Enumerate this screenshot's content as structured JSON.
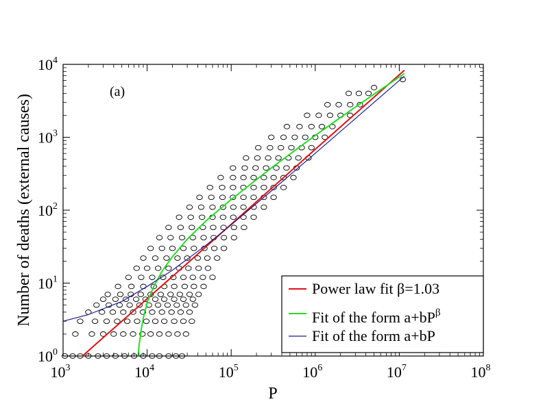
{
  "chart_data": {
    "type": "scatter",
    "xscale": "log",
    "yscale": "log",
    "xlim": [
      1000,
      100000000
    ],
    "ylim": [
      1,
      10000
    ],
    "xlabel": "P",
    "ylabel": "Number of deaths (external causes)",
    "panel_label": "(a)",
    "grid": false,
    "legend_position": "bottom-right",
    "xticks": [
      {
        "base": "10",
        "exp": "3",
        "value": 1000
      },
      {
        "base": "10",
        "exp": "4",
        "value": 10000
      },
      {
        "base": "10",
        "exp": "5",
        "value": 100000
      },
      {
        "base": "10",
        "exp": "6",
        "value": 1000000
      },
      {
        "base": "10",
        "exp": "7",
        "value": 10000000
      },
      {
        "base": "10",
        "exp": "8",
        "value": 100000000
      }
    ],
    "yticks": [
      {
        "base": "10",
        "exp": "0",
        "value": 1
      },
      {
        "base": "10",
        "exp": "1",
        "value": 10
      },
      {
        "base": "10",
        "exp": "2",
        "value": 100
      },
      {
        "base": "10",
        "exp": "3",
        "value": 1000
      },
      {
        "base": "10",
        "exp": "4",
        "value": 10000
      }
    ],
    "scatter_points": [
      [
        1050,
        1
      ],
      [
        1300,
        1
      ],
      [
        1600,
        1
      ],
      [
        2000,
        1
      ],
      [
        2600,
        1
      ],
      [
        3300,
        1
      ],
      [
        4200,
        1
      ],
      [
        5400,
        1
      ],
      [
        7000,
        1
      ],
      [
        9000,
        1
      ],
      [
        11500,
        1
      ],
      [
        14000,
        1
      ],
      [
        18000,
        1
      ],
      [
        22000,
        1
      ],
      [
        26000,
        1
      ],
      [
        1400,
        2
      ],
      [
        2200,
        2
      ],
      [
        3000,
        2
      ],
      [
        4000,
        2
      ],
      [
        5200,
        2
      ],
      [
        6800,
        2
      ],
      [
        8800,
        2
      ],
      [
        11000,
        2
      ],
      [
        14000,
        2
      ],
      [
        18000,
        2
      ],
      [
        23000,
        2
      ],
      [
        29000,
        2
      ],
      [
        1600,
        3
      ],
      [
        2400,
        3
      ],
      [
        3300,
        3
      ],
      [
        4400,
        3
      ],
      [
        5800,
        3
      ],
      [
        7600,
        3
      ],
      [
        9800,
        3
      ],
      [
        12500,
        3
      ],
      [
        16000,
        3
      ],
      [
        21000,
        3
      ],
      [
        27000,
        3
      ],
      [
        34000,
        3
      ],
      [
        2000,
        4
      ],
      [
        2900,
        4
      ],
      [
        3900,
        4
      ],
      [
        5200,
        4
      ],
      [
        6800,
        4
      ],
      [
        8900,
        4
      ],
      [
        11500,
        4
      ],
      [
        15000,
        4
      ],
      [
        19500,
        4
      ],
      [
        25000,
        4
      ],
      [
        32000,
        4
      ],
      [
        2500,
        5
      ],
      [
        3500,
        5
      ],
      [
        4700,
        5
      ],
      [
        6200,
        5
      ],
      [
        8100,
        5
      ],
      [
        10500,
        5
      ],
      [
        13500,
        5
      ],
      [
        17500,
        5
      ],
      [
        22500,
        5
      ],
      [
        29000,
        5
      ],
      [
        37000,
        5
      ],
      [
        3000,
        6
      ],
      [
        4200,
        6
      ],
      [
        5600,
        6
      ],
      [
        7400,
        6
      ],
      [
        9600,
        6
      ],
      [
        12500,
        6
      ],
      [
        16000,
        6
      ],
      [
        21000,
        6
      ],
      [
        27000,
        6
      ],
      [
        35000,
        6
      ],
      [
        3400,
        7
      ],
      [
        4800,
        7
      ],
      [
        6400,
        7
      ],
      [
        8400,
        7
      ],
      [
        11000,
        7
      ],
      [
        14500,
        7
      ],
      [
        19000,
        7
      ],
      [
        24500,
        7
      ],
      [
        32000,
        7
      ],
      [
        41000,
        7
      ],
      [
        4500,
        9
      ],
      [
        6500,
        9
      ],
      [
        9000,
        9
      ],
      [
        12000,
        9
      ],
      [
        16000,
        9
      ],
      [
        21000,
        9
      ],
      [
        28000,
        9
      ],
      [
        36000,
        9
      ],
      [
        47000,
        9
      ],
      [
        6000,
        12
      ],
      [
        8500,
        12
      ],
      [
        11500,
        12
      ],
      [
        15500,
        12
      ],
      [
        20500,
        12
      ],
      [
        27000,
        12
      ],
      [
        35000,
        12
      ],
      [
        46000,
        12
      ],
      [
        60000,
        12
      ],
      [
        7500,
        16
      ],
      [
        10000,
        16
      ],
      [
        13500,
        16
      ],
      [
        18000,
        16
      ],
      [
        24000,
        16
      ],
      [
        31000,
        16
      ],
      [
        41000,
        16
      ],
      [
        53000,
        16
      ],
      [
        9000,
        22
      ],
      [
        12500,
        22
      ],
      [
        17000,
        22
      ],
      [
        23000,
        22
      ],
      [
        30000,
        22
      ],
      [
        40000,
        22
      ],
      [
        52000,
        22
      ],
      [
        68000,
        22
      ],
      [
        11000,
        30
      ],
      [
        15000,
        30
      ],
      [
        20000,
        30
      ],
      [
        27000,
        30
      ],
      [
        36000,
        30
      ],
      [
        48000,
        30
      ],
      [
        63000,
        30
      ],
      [
        82000,
        30
      ],
      [
        14000,
        42
      ],
      [
        19000,
        42
      ],
      [
        26000,
        42
      ],
      [
        35000,
        42
      ],
      [
        47000,
        42
      ],
      [
        62000,
        42
      ],
      [
        82000,
        42
      ],
      [
        108000,
        42
      ],
      [
        18000,
        58
      ],
      [
        25000,
        58
      ],
      [
        34000,
        58
      ],
      [
        46000,
        58
      ],
      [
        61000,
        58
      ],
      [
        81000,
        58
      ],
      [
        108000,
        58
      ],
      [
        142000,
        58
      ],
      [
        24000,
        80
      ],
      [
        33000,
        80
      ],
      [
        45000,
        80
      ],
      [
        60000,
        80
      ],
      [
        80000,
        80
      ],
      [
        106000,
        80
      ],
      [
        140000,
        80
      ],
      [
        185000,
        80
      ],
      [
        32000,
        110
      ],
      [
        44000,
        110
      ],
      [
        60000,
        110
      ],
      [
        80000,
        110
      ],
      [
        106000,
        110
      ],
      [
        140000,
        110
      ],
      [
        185000,
        110
      ],
      [
        245000,
        110
      ],
      [
        42000,
        150
      ],
      [
        58000,
        150
      ],
      [
        79000,
        150
      ],
      [
        105000,
        150
      ],
      [
        140000,
        150
      ],
      [
        185000,
        150
      ],
      [
        245000,
        150
      ],
      [
        320000,
        150
      ],
      [
        56000,
        205
      ],
      [
        78000,
        205
      ],
      [
        105000,
        205
      ],
      [
        140000,
        205
      ],
      [
        185000,
        205
      ],
      [
        245000,
        205
      ],
      [
        320000,
        205
      ],
      [
        420000,
        205
      ],
      [
        75000,
        280
      ],
      [
        105000,
        280
      ],
      [
        140000,
        280
      ],
      [
        185000,
        280
      ],
      [
        245000,
        280
      ],
      [
        320000,
        280
      ],
      [
        420000,
        280
      ],
      [
        550000,
        280
      ],
      [
        105000,
        380
      ],
      [
        145000,
        380
      ],
      [
        195000,
        380
      ],
      [
        260000,
        380
      ],
      [
        345000,
        380
      ],
      [
        455000,
        380
      ],
      [
        600000,
        380
      ],
      [
        150000,
        520
      ],
      [
        205000,
        520
      ],
      [
        275000,
        520
      ],
      [
        365000,
        520
      ],
      [
        480000,
        520
      ],
      [
        630000,
        520
      ],
      [
        830000,
        520
      ],
      [
        210000,
        720
      ],
      [
        290000,
        720
      ],
      [
        390000,
        720
      ],
      [
        520000,
        720
      ],
      [
        690000,
        720
      ],
      [
        900000,
        720
      ],
      [
        300000,
        1000
      ],
      [
        420000,
        1000
      ],
      [
        570000,
        1000
      ],
      [
        760000,
        1000
      ],
      [
        1000000,
        1000
      ],
      [
        1300000,
        1000
      ],
      [
        460000,
        1400
      ],
      [
        650000,
        1400
      ],
      [
        900000,
        1400
      ],
      [
        1200000,
        1400
      ],
      [
        1600000,
        1400
      ],
      [
        800000,
        2000
      ],
      [
        1100000,
        2000
      ],
      [
        1500000,
        2000
      ],
      [
        2000000,
        2000
      ],
      [
        2600000,
        2000
      ],
      [
        1400000,
        2800
      ],
      [
        1900000,
        2800
      ],
      [
        2600000,
        2800
      ],
      [
        3400000,
        2800
      ],
      [
        2500000,
        4000
      ],
      [
        3300000,
        4000
      ],
      [
        4300000,
        4000
      ],
      [
        5000000,
        4800
      ],
      [
        11000000,
        6200
      ]
    ],
    "series": [
      {
        "name": "Power law fit β=1.03",
        "color": "#dd1111",
        "marker": "line",
        "x": [
          1700,
          3000,
          5000,
          10000,
          30000,
          100000,
          300000,
          1000000,
          3000000,
          11500000
        ],
        "y": [
          1.0,
          1.79,
          3.0,
          6.1,
          18.6,
          64,
          198,
          683,
          2105,
          8300
        ]
      },
      {
        "name": "Fit of the form a+bP",
        "exp_suffix": "β",
        "color": "#22dd22",
        "marker": "line",
        "x": [
          7800,
          8000,
          8500,
          9000,
          10000,
          12000,
          15000,
          20000,
          30000,
          50000,
          100000,
          300000,
          1000000,
          3000000,
          11500000
        ],
        "y": [
          1.0,
          1.35,
          2.3,
          3.3,
          5.4,
          9.0,
          14.5,
          23,
          40,
          71,
          140,
          380,
          1060,
          2600,
          7500
        ]
      },
      {
        "name": "Fit of the form a+bP",
        "color": "#1a1a8c",
        "marker": "line",
        "x": [
          1000,
          2000,
          5000,
          10000,
          20000,
          50000,
          100000,
          300000,
          1000000,
          3000000,
          11500000
        ],
        "y": [
          3.0,
          3.7,
          5.6,
          9.0,
          15.0,
          33,
          63,
          183,
          603,
          1803,
          6900
        ]
      }
    ]
  }
}
